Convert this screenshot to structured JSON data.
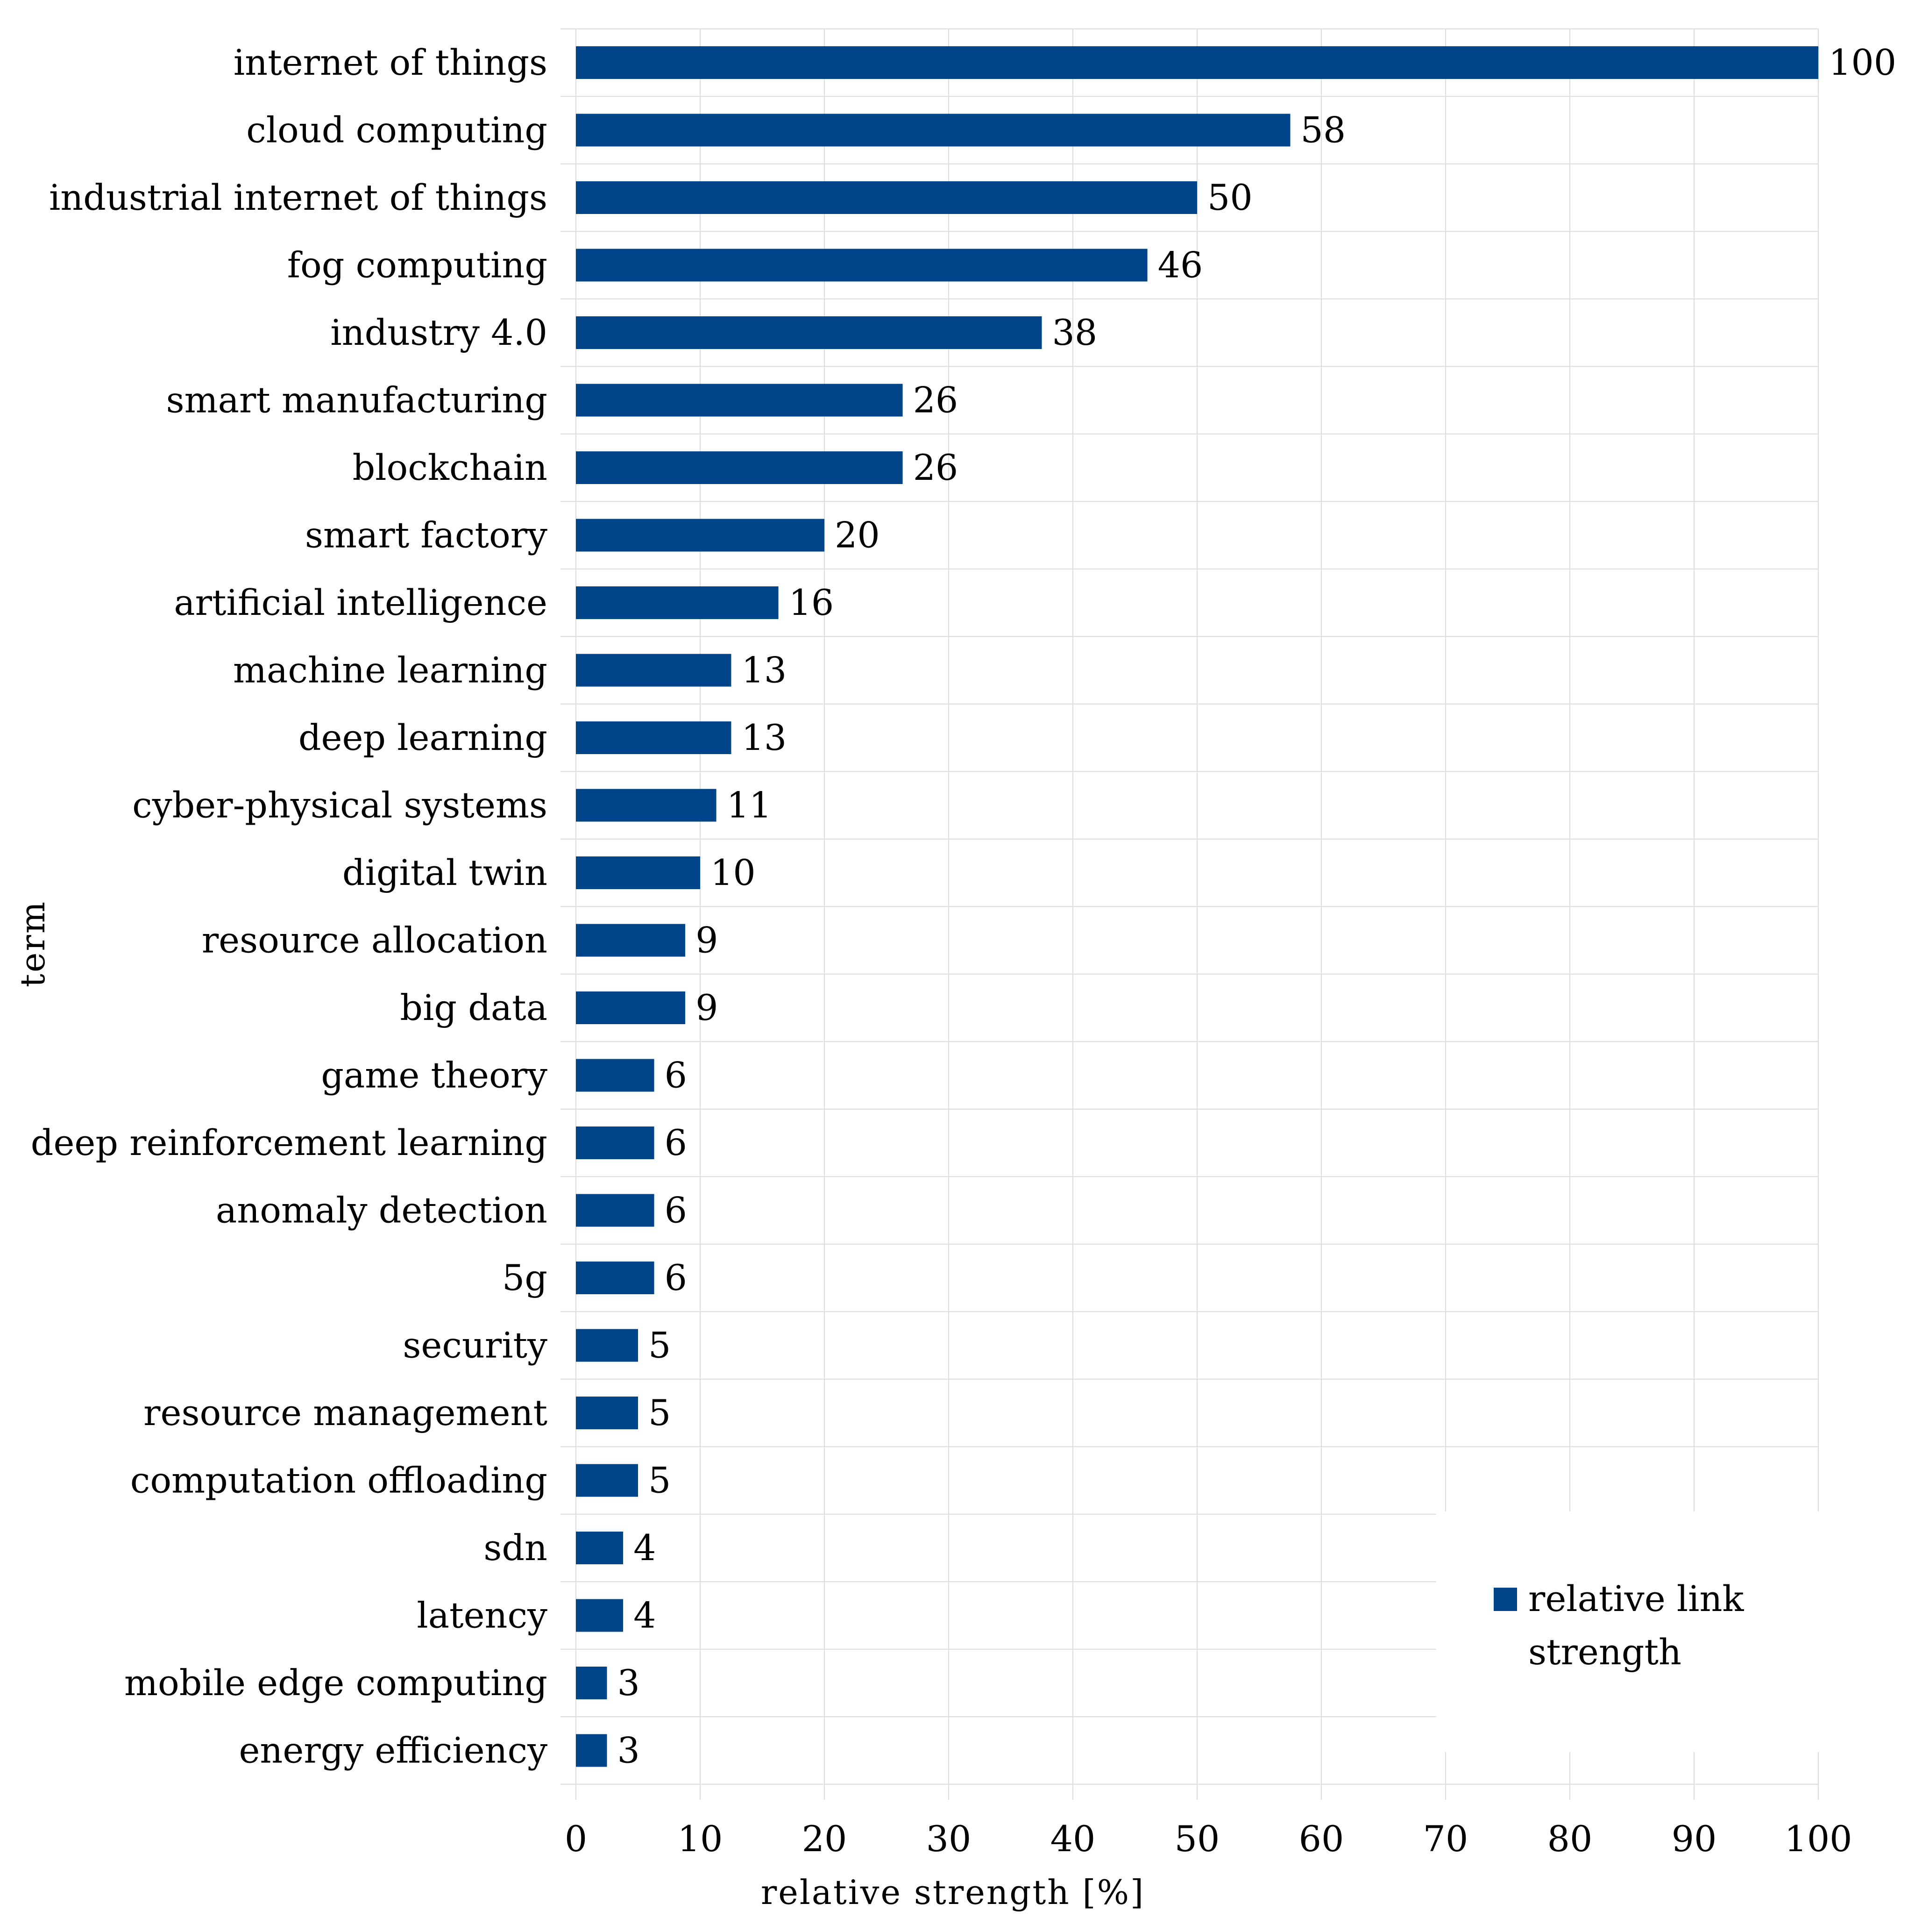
{
  "chart_data": {
    "type": "bar",
    "orientation": "horizontal",
    "title": "",
    "xlabel": "relative strength [%]",
    "ylabel": "term",
    "xlim": [
      0,
      100
    ],
    "xticks": [
      "0",
      "10",
      "20",
      "30",
      "40",
      "50",
      "60",
      "70",
      "80",
      "90",
      "100"
    ],
    "grid": true,
    "legend_position": "bottom-right",
    "series": [
      {
        "name": "relative link strength",
        "color": "#00458A",
        "categories": [
          "internet of things",
          "cloud computing",
          "industrial internet of things",
          "fog computing",
          "industry 4.0",
          "smart manufacturing",
          "blockchain",
          "smart factory",
          "artificial intelligence",
          "machine learning",
          "deep learning",
          "cyber-physical systems",
          "digital twin",
          "resource allocation",
          "big data",
          "game theory",
          "deep reinforcement learning",
          "anomaly detection",
          "5g",
          "security",
          "resource management",
          "computation offloading",
          "sdn",
          "latency",
          "mobile edge computing",
          "energy efficiency"
        ],
        "values": [
          100,
          58,
          50,
          46,
          38,
          26,
          26,
          20,
          16,
          13,
          13,
          11,
          10,
          9,
          9,
          6,
          6,
          6,
          6,
          5,
          5,
          5,
          4,
          4,
          3,
          3
        ],
        "value_labels": [
          "100",
          "58",
          "50",
          "46",
          "38",
          "26",
          "26",
          "20",
          "16",
          "13",
          "13",
          "11",
          "10",
          "9",
          "9",
          "6",
          "6",
          "6",
          "6",
          "5",
          "5",
          "5",
          "4",
          "4",
          "3",
          "3"
        ],
        "plotted_values": [
          100,
          57.5,
          50,
          46,
          37.5,
          26.3,
          26.3,
          20,
          16.3,
          12.5,
          12.5,
          11.3,
          10,
          8.8,
          8.8,
          6.3,
          6.3,
          6.3,
          6.3,
          5,
          5,
          5,
          3.8,
          3.8,
          2.5,
          2.5
        ]
      }
    ],
    "legend": {
      "entries": [
        "relative link",
        "strength"
      ]
    }
  }
}
